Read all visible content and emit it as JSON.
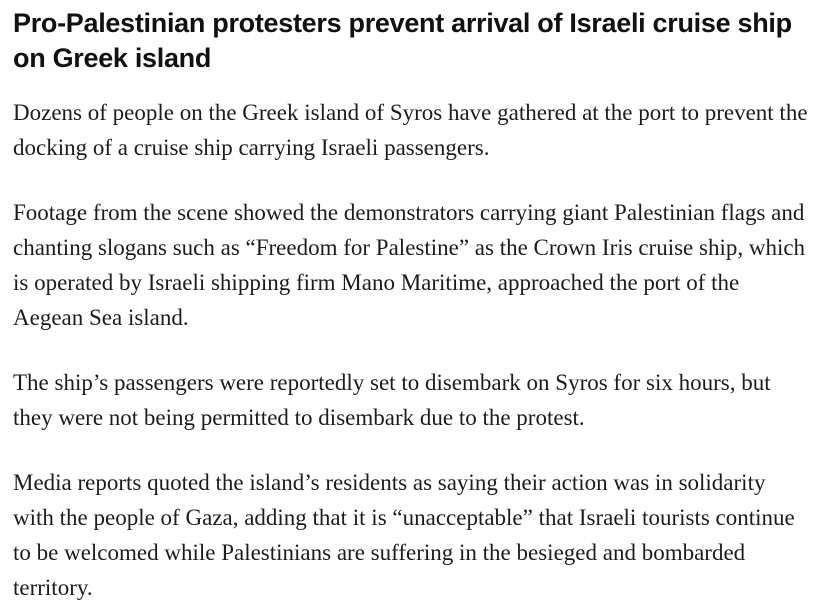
{
  "colors": {
    "background": "#ffffff",
    "headline_text": "#111111",
    "body_text": "#1c1c1c"
  },
  "article": {
    "title": "Pro-Palestinian protesters prevent arrival of Israeli cruise ship on Greek island",
    "paragraphs": [
      "Dozens of people on the Greek island of Syros have gathered at the port to prevent the docking of a cruise ship carrying Israeli passengers.",
      "Footage from the scene showed the demonstrators carrying giant Palestinian flags and chanting slogans such as “Freedom for Palestine” as the Crown Iris cruise ship, which is operated by Israeli shipping firm Mano Maritime, approached the port of the Aegean Sea island.",
      "The ship’s passengers were reportedly set to disembark on Syros for six hours, but they were not being permitted to disembark due to the protest.",
      "Media reports quoted the island’s residents as saying their action was in solidarity with the people of Gaza, adding that it is “unacceptable” that Israeli tourists con­tinue to be welcomed while Palestinians are suffering in the besieged and bom­barded territory."
    ]
  }
}
